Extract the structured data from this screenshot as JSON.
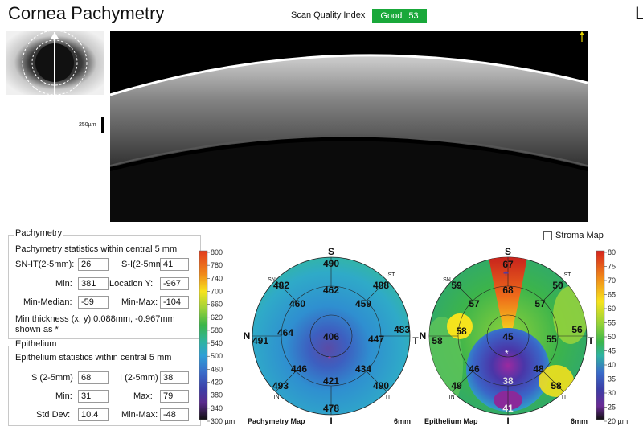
{
  "header": {
    "title": "Cornea Pachymetry",
    "scan_quality_label": "Scan Quality Index",
    "scan_quality_status": "Good",
    "scan_quality_value": "53",
    "corner_letter": "L-"
  },
  "oct": {
    "scale_label": "250µm"
  },
  "pachymetry": {
    "section_title": "Pachymetry",
    "stats_title": "Pachymetry statistics within central 5 mm",
    "sn_it_label": "SN-IT(2-5mm):",
    "sn_it_value": "26",
    "s_i_label": "S-I(2-5mm):",
    "s_i_value": "41",
    "min_label": "Min:",
    "min_value": "381",
    "locy_label": "Location Y:",
    "locy_value": "-967",
    "minmed_label": "Min-Median:",
    "minmed_value": "-59",
    "minmax_label": "Min-Max:",
    "minmax_value": "-104",
    "note_line1": "Min thickness (x, y) 0.088mm, -0.967mm",
    "note_line2": "shown as *"
  },
  "epithelium": {
    "section_title": "Epithelium",
    "stats_title": "Epithelium statistics within central 5 mm",
    "s_label": "S (2-5mm)",
    "s_value": "68",
    "i_label": "I (2-5mm)",
    "i_value": "38",
    "min_label": "Min:",
    "min_value": "31",
    "max_label": "Max:",
    "max_value": "79",
    "std_label": "Std Dev:",
    "std_value": "10.4",
    "minmax_label": "Min-Max:",
    "minmax_value": "-48"
  },
  "stroma_map": {
    "label": "Stroma Map",
    "checked": false
  },
  "pachy_scale": {
    "ticks": [
      "800",
      "780",
      "740",
      "700",
      "660",
      "620",
      "580",
      "540",
      "500",
      "460",
      "420",
      "380",
      "340",
      "300 µm"
    ]
  },
  "epi_scale": {
    "ticks": [
      "80",
      "75",
      "70",
      "65",
      "60",
      "55",
      "50",
      "45",
      "40",
      "35",
      "30",
      "25",
      "20 µm"
    ]
  },
  "pachy_map": {
    "caption": "Pachymetry Map",
    "size_label": "6mm",
    "dir_s": "S",
    "dir_i": "I",
    "dir_n": "N",
    "dir_t": "T",
    "sn": "SN",
    "st": "ST",
    "in": "IN",
    "it": "IT",
    "values": {
      "center": "406",
      "s_outer": "490",
      "i_outer": "478",
      "n_outer": "491",
      "t_outer": "483",
      "sn_outer": "482",
      "st_outer": "488",
      "in_outer": "493",
      "it_outer": "490",
      "s_inner": "462",
      "i_inner": "421",
      "n_inner": "464",
      "t_inner": "447",
      "sn_inner": "460",
      "st_inner": "459",
      "in_inner": "446",
      "it_inner": "434"
    }
  },
  "epi_map": {
    "caption": "Epithelium Map",
    "size_label": "6mm",
    "dir_s": "S",
    "dir_i": "I",
    "dir_n": "N",
    "dir_t": "T",
    "sn": "SN",
    "st": "ST",
    "in": "IN",
    "it": "IT",
    "values": {
      "center": "45",
      "s_outer": "67",
      "i_outer": "41",
      "n_outer": "58",
      "t_outer": "56",
      "sn_outer": "59",
      "st_outer": "50",
      "in_outer": "49",
      "it_outer": "58",
      "s_inner": "68",
      "i_inner": "38",
      "n_inner": "58",
      "t_inner": "55",
      "sn_inner": "57",
      "st_inner": "57",
      "in_inner": "46",
      "it_inner": "48"
    }
  },
  "colors": {
    "quality_good": "#19a83a"
  }
}
